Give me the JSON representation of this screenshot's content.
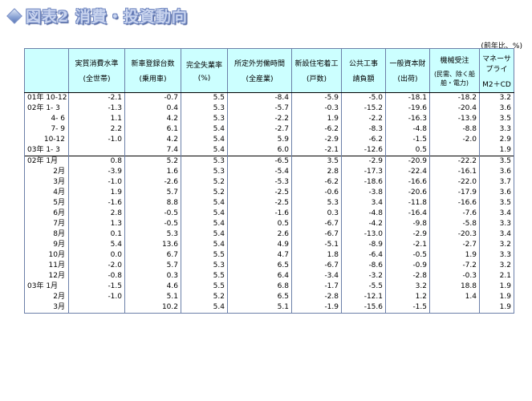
{
  "title": "図表2 消費・投資動向",
  "unit_note": "(前年比、%)",
  "columns": [
    {
      "line1": "",
      "line2": ""
    },
    {
      "line1": "実質消費水準",
      "line2": "(全世帯)"
    },
    {
      "line1": "新車登録台数",
      "line2": "(乗用車)"
    },
    {
      "line1": "完全失業率",
      "line2": "(%)"
    },
    {
      "line1": "所定外労働時間",
      "line2": "(全産業)"
    },
    {
      "line1": "新設住宅着工",
      "line2": "(戸数)"
    },
    {
      "line1": "公共工事",
      "line2": "請負額"
    },
    {
      "line1": "一般資本財",
      "line2": "(出荷)"
    },
    {
      "line1": "機械受注",
      "line2": "(民需、除く船舶・電力)"
    },
    {
      "line1": "マネーサプライ",
      "line2": "M2＋CD"
    }
  ],
  "rows": [
    {
      "label": "01年 10-12",
      "values": [
        "-2.1",
        "-0.7",
        "5.5",
        "-8.4",
        "-5.9",
        "-5.0",
        "-18.1",
        "-18.2",
        "3.2"
      ]
    },
    {
      "label": "02年  1- 3",
      "values": [
        "-1.3",
        "0.4",
        "5.3",
        "-5.7",
        "-0.3",
        "-15.2",
        "-19.6",
        "-20.4",
        "3.6"
      ]
    },
    {
      "label": "4- 6",
      "values": [
        "1.1",
        "4.2",
        "5.3",
        "-2.2",
        "1.9",
        "-2.2",
        "-16.3",
        "-13.9",
        "3.5"
      ]
    },
    {
      "label": "7- 9",
      "values": [
        "2.2",
        "6.1",
        "5.4",
        "-2.7",
        "-6.2",
        "-8.3",
        "-4.8",
        "-8.8",
        "3.3"
      ]
    },
    {
      "label": "10-12",
      "values": [
        "-1.0",
        "4.2",
        "5.4",
        "5.9",
        "-2.9",
        "-6.2",
        "-1.5",
        "-2.0",
        "2.9"
      ]
    },
    {
      "label": "03年  1- 3",
      "values": [
        "",
        "7.4",
        "5.4",
        "6.0",
        "-2.1",
        "-12.6",
        "0.5",
        "",
        "1.9"
      ]
    },
    {
      "label": "02年    1月",
      "values": [
        "0.8",
        "5.2",
        "5.3",
        "-6.5",
        "3.5",
        "-2.9",
        "-20.9",
        "-22.2",
        "3.5"
      ]
    },
    {
      "label": "2月",
      "values": [
        "-3.9",
        "1.6",
        "5.3",
        "-5.4",
        "2.8",
        "-17.3",
        "-22.4",
        "-16.1",
        "3.6"
      ]
    },
    {
      "label": "3月",
      "values": [
        "-1.0",
        "-2.6",
        "5.2",
        "-5.3",
        "-6.2",
        "-18.6",
        "-16.6",
        "-22.0",
        "3.7"
      ]
    },
    {
      "label": "4月",
      "values": [
        "1.9",
        "5.7",
        "5.2",
        "-2.5",
        "-0.6",
        "-3.8",
        "-20.6",
        "-17.9",
        "3.6"
      ]
    },
    {
      "label": "5月",
      "values": [
        "-1.6",
        "8.8",
        "5.4",
        "-2.5",
        "5.3",
        "3.4",
        "-11.8",
        "-16.6",
        "3.5"
      ]
    },
    {
      "label": "6月",
      "values": [
        "2.8",
        "-0.5",
        "5.4",
        "-1.6",
        "0.3",
        "-4.8",
        "-16.4",
        "-7.6",
        "3.4"
      ]
    },
    {
      "label": "7月",
      "values": [
        "1.3",
        "-0.5",
        "5.4",
        "0.5",
        "-6.7",
        "-4.2",
        "-9.8",
        "-5.8",
        "3.3"
      ]
    },
    {
      "label": "8月",
      "values": [
        "0.1",
        "5.3",
        "5.4",
        "2.6",
        "-6.7",
        "-13.0",
        "-2.9",
        "-20.3",
        "3.4"
      ]
    },
    {
      "label": "9月",
      "values": [
        "5.4",
        "13.6",
        "5.4",
        "4.9",
        "-5.1",
        "-8.9",
        "-2.1",
        "-2.7",
        "3.2"
      ]
    },
    {
      "label": "10月",
      "values": [
        "0.0",
        "6.7",
        "5.5",
        "4.7",
        "1.8",
        "-6.4",
        "-0.5",
        "1.9",
        "3.3"
      ]
    },
    {
      "label": "11月",
      "values": [
        "-2.0",
        "5.7",
        "5.3",
        "6.5",
        "-6.7",
        "-8.6",
        "-0.9",
        "-7.2",
        "3.2"
      ]
    },
    {
      "label": "12月",
      "values": [
        "-0.8",
        "0.3",
        "5.5",
        "6.4",
        "-3.4",
        "-3.2",
        "-2.8",
        "-0.3",
        "2.1"
      ]
    },
    {
      "label": "03年    1月",
      "values": [
        "-1.5",
        "4.6",
        "5.5",
        "6.8",
        "-1.7",
        "-5.5",
        "3.2",
        "18.8",
        "1.9"
      ]
    },
    {
      "label": "2月",
      "values": [
        "-1.0",
        "5.1",
        "5.2",
        "6.5",
        "-2.8",
        "-12.1",
        "1.2",
        "1.4",
        "1.9"
      ]
    },
    {
      "label": "3月",
      "values": [
        "",
        "10.2",
        "5.4",
        "5.1",
        "-1.9",
        "-15.6",
        "-1.5",
        "",
        "1.9"
      ]
    }
  ]
}
